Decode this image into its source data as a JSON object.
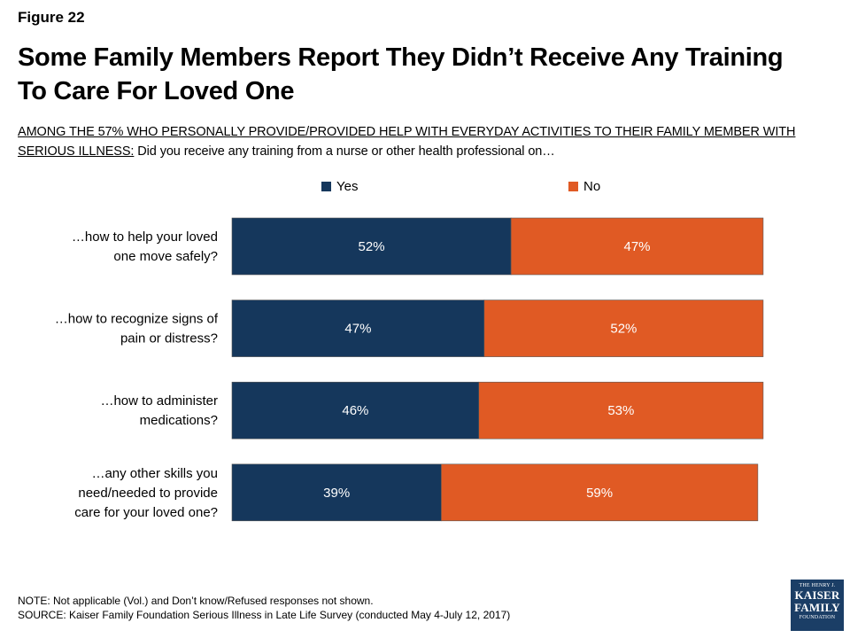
{
  "figure_label": "Figure 22",
  "title_line1": "Some Family Members Report They Didn’t Receive Any Training",
  "title_line2": "To Care For Loved One",
  "subtitle_lead": "AMONG THE 57% WHO PERSONALLY PROVIDE/PROVIDED HELP WITH EVERYDAY ACTIVITIES TO THEIR FAMILY MEMBER WITH SERIOUS ILLNESS:",
  "subtitle_rest": " Did you receive any training from a nurse or other health professional on…",
  "colors": {
    "yes": "#15375c",
    "no": "#e05a24"
  },
  "chart_data": {
    "type": "bar",
    "orientation": "horizontal",
    "stacked": true,
    "categories": [
      [
        "…how to help your loved",
        "one move safely?"
      ],
      [
        "…how to recognize signs of",
        "pain or distress?"
      ],
      [
        "…how to administer",
        "medications?"
      ],
      [
        "…any other skills you",
        "need/needed to provide",
        "care for your loved one?"
      ]
    ],
    "series": [
      {
        "name": "Yes",
        "values": [
          52,
          47,
          46,
          39
        ],
        "labels": [
          "52%",
          "47%",
          "46%",
          "39%"
        ]
      },
      {
        "name": "No",
        "values": [
          47,
          52,
          53,
          59
        ],
        "labels": [
          "47%",
          "52%",
          "53%",
          "59%"
        ]
      }
    ],
    "xlim": [
      0,
      100
    ],
    "legend": "top",
    "grid": false
  },
  "footer": {
    "note": "NOTE: Not applicable (Vol.) and Don’t know/Refused responses not shown.",
    "source": "SOURCE: Kaiser Family Foundation Serious Illness in Late Life Survey (conducted May 4-July 12, 2017)"
  },
  "logo": {
    "line1": "THE HENRY J.",
    "line2": "KAISER",
    "line3": "FAMILY",
    "line4": "FOUNDATION"
  }
}
